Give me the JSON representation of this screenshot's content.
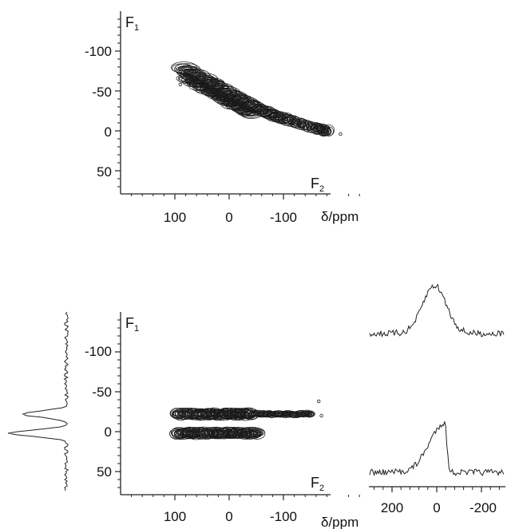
{
  "figure": {
    "panels": [
      "top-2d",
      "bottom-2d",
      "f1-projection",
      "f2-slices"
    ]
  },
  "chart_data": [
    {
      "id": "top-2d",
      "type": "contour",
      "dim_label_f1": {
        "main": "F",
        "sub": "1"
      },
      "dim_label_f2": {
        "main": "F",
        "sub": "2"
      },
      "x_unit_label": "δ/ppm",
      "x_ticks": [
        100,
        0,
        -100
      ],
      "x_tick_labels": [
        "100",
        "0",
        "-100"
      ],
      "y_ticks": [
        -100,
        -50,
        0,
        50
      ],
      "y_tick_labels": [
        "-100",
        "-50",
        "0",
        "50"
      ],
      "xlim": [
        195,
        -255
      ],
      "ylim": [
        -150,
        78
      ],
      "y_reversed": true,
      "contour_ridge": [
        {
          "x": 85,
          "y": -75
        },
        {
          "x": 40,
          "y": -58
        },
        {
          "x": 0,
          "y": -42
        },
        {
          "x": -40,
          "y": -28
        },
        {
          "x": -80,
          "y": -16
        },
        {
          "x": -120,
          "y": -7
        },
        {
          "x": -160,
          "y": 0
        },
        {
          "x": -185,
          "y": 5
        }
      ],
      "isolated_points": [
        {
          "x": 90,
          "y": -58
        },
        {
          "x": -205,
          "y": 4
        }
      ]
    },
    {
      "id": "bottom-2d",
      "type": "contour",
      "dim_label_f1": {
        "main": "F",
        "sub": "1"
      },
      "dim_label_f2": {
        "main": "F",
        "sub": "2"
      },
      "x_unit_label": "δ/ppm",
      "x_ticks": [
        100,
        0,
        -100
      ],
      "x_tick_labels": [
        "100",
        "0",
        "-100"
      ],
      "y_ticks": [
        -100,
        -50,
        0,
        50
      ],
      "y_tick_labels": [
        "-100",
        "-50",
        "0",
        "50"
      ],
      "xlim": [
        195,
        -255
      ],
      "ylim": [
        -150,
        78
      ],
      "y_reversed": true,
      "bands": [
        {
          "f1": -22,
          "x_from": 95,
          "x_to": -150,
          "thick_to": -40
        },
        {
          "f1": 2,
          "x_from": 95,
          "x_to": -55,
          "thick_to": -50
        }
      ],
      "isolated_points": [
        {
          "x": -165,
          "y": -38
        },
        {
          "x": -170,
          "y": -20
        }
      ]
    },
    {
      "id": "f1-projection",
      "type": "line",
      "orientation": "vertical",
      "f1_range": [
        -150,
        78
      ],
      "peaks": [
        {
          "f1": -22,
          "intensity": 0.75
        },
        {
          "f1": 2,
          "intensity": 1.0
        }
      ]
    },
    {
      "id": "f2-slices",
      "type": "line",
      "x_ticks": [
        200,
        0,
        -200
      ],
      "x_tick_labels": [
        "200",
        "0",
        "-200"
      ],
      "xlim": [
        300,
        -300
      ],
      "series": [
        {
          "peak_ppm": 10,
          "shape": "broad",
          "peak_height": 1.0
        },
        {
          "peak_ppm": -35,
          "shape": "asymmetric",
          "peak_height": 1.0
        }
      ]
    }
  ]
}
